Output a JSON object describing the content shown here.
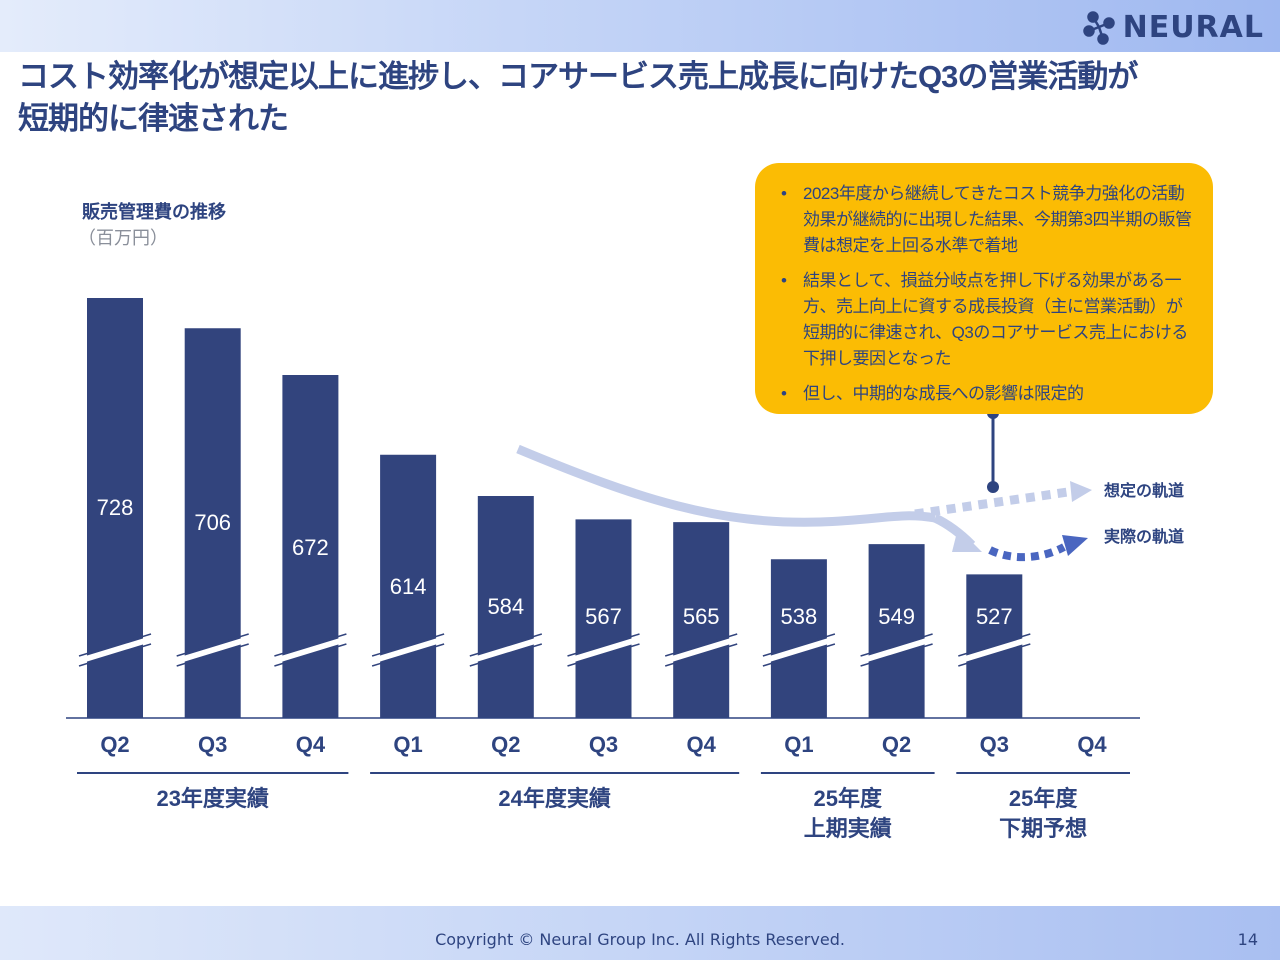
{
  "header": {
    "logo_text": "NEURAL",
    "title_line1": "コスト効率化が想定以上に進捗し、コアサービス売上成長に向けたQ3の営業活動が",
    "title_line2": "短期的に律速された"
  },
  "colors": {
    "primary": "#2e4480",
    "bar": "#32447d",
    "callout_bg": "#fbbc04",
    "expected_trend": "#c3cde9",
    "actual_trend": "#4a66c0"
  },
  "callout": {
    "bullets": [
      "2023年度から継続してきたコスト競争力強化の活動効果が継続的に出現した結果、今期第3四半期の販管費は想定を上回る水準で着地",
      "結果として、損益分岐点を押し下げる効果がある一方、売上向上に資する成長投資（主に営業活動）が短期的に律速され、Q3のコアサービス売上における下押し要因となった",
      "但し、中期的な成長への影響は限定的"
    ]
  },
  "chart_data": {
    "type": "bar",
    "title": "販売管理費の推移",
    "unit": "（百万円）",
    "categories": [
      "Q2",
      "Q3",
      "Q4",
      "Q1",
      "Q2",
      "Q3",
      "Q4",
      "Q1",
      "Q2",
      "Q3",
      "Q4"
    ],
    "values": [
      728,
      706,
      672,
      614,
      584,
      567,
      565,
      538,
      549,
      527,
      null
    ],
    "axis_break": true,
    "groups": [
      {
        "label": "23年度実績",
        "start": 0,
        "end": 2
      },
      {
        "label": "24年度実績",
        "start": 3,
        "end": 6
      },
      {
        "label": "25年度\n上期実績",
        "start": 7,
        "end": 8
      },
      {
        "label": "25年度\n下期予想",
        "start": 9,
        "end": 10
      }
    ],
    "annotations": {
      "expected_label": "想定の軌道",
      "actual_label": "実際の軌道"
    }
  },
  "footer": {
    "copyright": "Copyright © Neural Group Inc. All Rights Reserved.",
    "page_number": "14"
  }
}
